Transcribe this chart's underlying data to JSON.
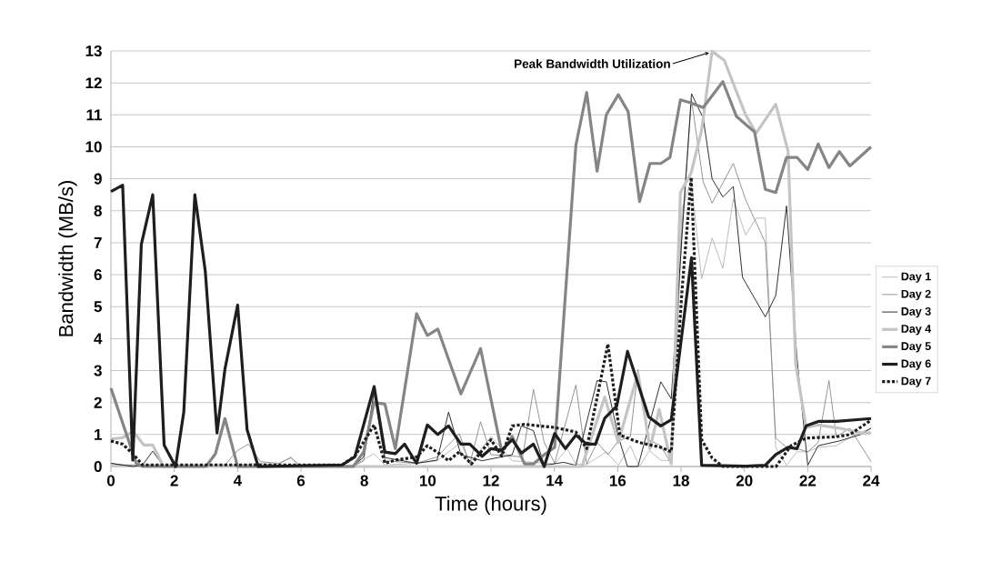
{
  "chart_data": {
    "type": "line",
    "xlabel": "Time (hours)",
    "ylabel": "Bandwidth (MB/s)",
    "xlim": [
      0,
      24
    ],
    "xticks": [
      0,
      2,
      4,
      6,
      8,
      10,
      12,
      14,
      16,
      18,
      20,
      22,
      24
    ],
    "ylim": [
      0,
      13
    ],
    "yticks": [
      0,
      1,
      2,
      3,
      4,
      5,
      6,
      7,
      8,
      9,
      10,
      11,
      12,
      13
    ],
    "grid": "y",
    "legend": "right",
    "annotations": [
      {
        "text": "Peak Bandwidth Utilization",
        "x": 19,
        "y": 13
      }
    ],
    "series": [
      {
        "name": "Day 1",
        "color": "#ababab",
        "x": [
          0,
          2,
          4,
          4.7,
          5.3,
          5.67,
          6,
          7.7,
          8.3,
          8.65,
          9.65,
          10.3,
          11.05,
          11.33,
          12.0,
          12.67,
          14.01,
          14.4,
          14.68,
          15.0,
          15.64,
          16.02,
          16.4,
          16.69,
          17.0,
          17.36,
          17.69,
          18.03,
          18.32,
          18.65,
          18.98,
          19.32,
          19.65,
          20.04,
          20.37,
          20.66,
          20.99,
          21.33,
          21.66,
          22.0,
          22.33,
          22.9,
          23.5,
          24
        ],
        "values": [
          0.05,
          0.0,
          0.05,
          0.1,
          0.05,
          0.3,
          0.0,
          0.05,
          0.4,
          0.05,
          0.1,
          0.18,
          0.75,
          0.1,
          0.94,
          0.18,
          0.08,
          0.56,
          0.08,
          0.05,
          0.46,
          0.04,
          0.65,
          0,
          0.5,
          0.2,
          0.18,
          8.05,
          8.95,
          5.87,
          7.15,
          6.2,
          8.38,
          7.24,
          7.77,
          7.77,
          0.6,
          0.04,
          0.46,
          0.46,
          0.6,
          0.65,
          1.0,
          1.2
        ]
      },
      {
        "name": "Day 2",
        "color": "#7a7a7a",
        "x": [
          0,
          0.4,
          3.6,
          4.0,
          4.34,
          4.72,
          5.3,
          5.68,
          6.0,
          7.65,
          7.98,
          8.31,
          8.65,
          9.65,
          10.3,
          11.0,
          11.33,
          11.67,
          12.0,
          13.0,
          13.34,
          13.68,
          14.01,
          14.68,
          15.02,
          15.35,
          15.69,
          16.02,
          16.4,
          16.64,
          16.98,
          17.36,
          17.69,
          18.03,
          18.33,
          18.7,
          18.98,
          19.65,
          20.04,
          20.66,
          20.99,
          21.33,
          21.66,
          22.0,
          22.33,
          22.67,
          22.9,
          23.33,
          24
        ],
        "values": [
          0.1,
          0.05,
          0.05,
          0.5,
          0.7,
          0.15,
          0.1,
          0.27,
          0.0,
          0.0,
          0.18,
          2.27,
          0.18,
          0.1,
          0.3,
          1.03,
          0.08,
          1.4,
          0.37,
          0.3,
          2.41,
          0.75,
          0.1,
          2.55,
          0.08,
          0.75,
          0.37,
          0.8,
          0.94,
          3.03,
          0.84,
          0.65,
          0.08,
          7.48,
          11.47,
          8.9,
          8.24,
          9.48,
          8.34,
          7.01,
          0.89,
          0.6,
          0.56,
          0.46,
          0.75,
          2.69,
          0.93,
          1.2,
          0.15
        ]
      },
      {
        "name": "Day 3",
        "color": "#1a1a1a",
        "x": [
          0,
          0.7,
          1.0,
          1.32,
          1.66,
          7.65,
          7.98,
          8.31,
          8.65,
          9.65,
          10.3,
          10.66,
          11.05,
          11.72,
          12.67,
          12.96,
          13.34,
          13.68,
          14.3,
          14.68,
          15.35,
          15.64,
          16.02,
          16.31,
          16.64,
          17.36,
          17.69,
          18.33,
          18.7,
          18.98,
          19.32,
          19.65,
          19.94,
          20.66,
          20.99,
          21.33,
          21.66,
          22.0,
          22.33,
          23.0,
          23.67,
          24
        ],
        "values": [
          0.1,
          0.0,
          0.05,
          0.48,
          0.0,
          0.0,
          0.3,
          2.36,
          0.28,
          0.1,
          0.2,
          1.7,
          0.37,
          0.18,
          0.37,
          1.27,
          1.12,
          0.04,
          0.13,
          0.04,
          2.69,
          2.65,
          0.94,
          0,
          0,
          2.65,
          2.12,
          11.66,
          10.9,
          9.0,
          8.43,
          8.76,
          5.92,
          4.68,
          5.35,
          8.15,
          3.4,
          0.04,
          0.65,
          0.8,
          1.0,
          1.2
        ]
      },
      {
        "name": "Day 4",
        "color": "#c4c4c4",
        "x": [
          0,
          0.37,
          0.7,
          1.04,
          1.32,
          1.66,
          14.87,
          15.59,
          16.02,
          16.64,
          17.02,
          17.31,
          17.69,
          17.98,
          18.32,
          18.65,
          18.98,
          19.37,
          19.7,
          20.04,
          20.37,
          20.99,
          21.38,
          21.62,
          21.95,
          22.33,
          23.0,
          23.67,
          24
        ],
        "values": [
          0.86,
          0.9,
          1.1,
          0.67,
          0.67,
          0,
          0,
          2.17,
          0.75,
          2.93,
          0.56,
          1.79,
          0.08,
          8.57,
          9.19,
          10.52,
          12.99,
          12.7,
          11.85,
          11.0,
          10.43,
          11.33,
          9.86,
          3.21,
          1.22,
          1.3,
          1.2,
          1.05,
          1.05
        ]
      },
      {
        "name": "Day 5",
        "color": "#858585",
        "x": [
          0,
          0.8,
          1.0,
          3.0,
          3.3,
          3.6,
          4.0,
          7.65,
          7.98,
          8.31,
          8.65,
          8.98,
          9.65,
          9.99,
          10.32,
          11.05,
          11.67,
          12.34,
          12.67,
          13.06,
          13.34,
          13.68,
          14.01,
          14.68,
          15.02,
          15.35,
          15.64,
          16.02,
          16.33,
          16.69,
          17.02,
          17.36,
          17.65,
          17.98,
          18.32,
          18.7,
          19.32,
          19.75,
          20.09,
          20.32,
          20.66,
          20.99,
          21.33,
          21.66,
          22.0,
          22.33,
          22.67,
          23.0,
          23.33,
          24
        ],
        "values": [
          2.45,
          0.1,
          0,
          0,
          0.4,
          1.5,
          0,
          0,
          0.46,
          2.0,
          1.95,
          0.56,
          4.78,
          4.1,
          4.3,
          2.27,
          3.69,
          0.46,
          0.94,
          0.08,
          0.08,
          0.37,
          0.6,
          10.05,
          11.7,
          9.24,
          11.0,
          11.63,
          11.1,
          8.29,
          9.48,
          9.48,
          9.67,
          11.47,
          11.37,
          11.23,
          12.04,
          10.95,
          10.66,
          10.47,
          8.67,
          8.57,
          9.67,
          9.67,
          9.29,
          10.09,
          9.35,
          9.85,
          9.4,
          10.0
        ]
      },
      {
        "name": "Day 6",
        "color": "#1e1e1e",
        "x": [
          0,
          0.37,
          0.69,
          0.96,
          1.32,
          1.68,
          2.04,
          2.3,
          2.65,
          2.98,
          3.35,
          3.6,
          4.0,
          4.3,
          4.65,
          7.3,
          7.7,
          8.31,
          8.65,
          8.98,
          9.27,
          9.65,
          9.99,
          10.32,
          10.66,
          11.05,
          11.33,
          11.72,
          12.0,
          12.34,
          12.67,
          12.96,
          13.34,
          13.68,
          14.01,
          14.35,
          14.68,
          15.02,
          15.3,
          15.59,
          15.97,
          16.31,
          16.98,
          17.36,
          17.69,
          18.33,
          18.65,
          20.04,
          20.66,
          20.99,
          21.38,
          21.66,
          21.95,
          22.33,
          22.9,
          24
        ],
        "values": [
          8.6,
          8.8,
          0.2,
          6.95,
          8.5,
          0.67,
          0,
          1.7,
          8.5,
          6.1,
          1.05,
          3.05,
          5.05,
          1.15,
          0,
          0.05,
          0.3,
          2.5,
          0.45,
          0.4,
          0.7,
          0.1,
          1.3,
          1.0,
          1.27,
          0.7,
          0.7,
          0.32,
          0.56,
          0.51,
          0.84,
          0.42,
          0.7,
          0,
          1.03,
          0.56,
          0.98,
          0.7,
          0.7,
          1.51,
          1.89,
          3.6,
          1.55,
          1.27,
          1.46,
          6.53,
          0.04,
          0.01,
          0.04,
          0.37,
          0.6,
          0.56,
          1.27,
          1.41,
          1.41,
          1.5
        ]
      },
      {
        "name": "Day 7",
        "color": "#1e1e1e",
        "line_style": "dotted",
        "x": [
          0,
          0.37,
          0.69,
          1.0,
          7.3,
          7.7,
          8.31,
          8.65,
          8.98,
          9.65,
          9.99,
          10.37,
          10.66,
          11.0,
          11.38,
          12.0,
          12.34,
          12.67,
          13.06,
          14.01,
          14.68,
          15.02,
          15.45,
          15.69,
          16.07,
          16.69,
          17.36,
          17.69,
          18.03,
          18.32,
          18.65,
          18.98,
          19.32,
          21.0,
          21.47,
          21.95,
          22.9,
          23.33,
          24
        ],
        "values": [
          0.8,
          0.7,
          0.4,
          0.05,
          0.05,
          0.32,
          1.3,
          0.1,
          0.2,
          0.3,
          0.65,
          0.4,
          0.18,
          0.46,
          0.08,
          0.84,
          0.32,
          1.27,
          1.32,
          1.22,
          1.08,
          0.56,
          2.65,
          3.83,
          0.98,
          0.75,
          0.6,
          0.46,
          5.49,
          9.05,
          0.84,
          0.27,
          0,
          0.0,
          0.65,
          0.89,
          0.93,
          1.0,
          1.45
        ]
      }
    ]
  }
}
